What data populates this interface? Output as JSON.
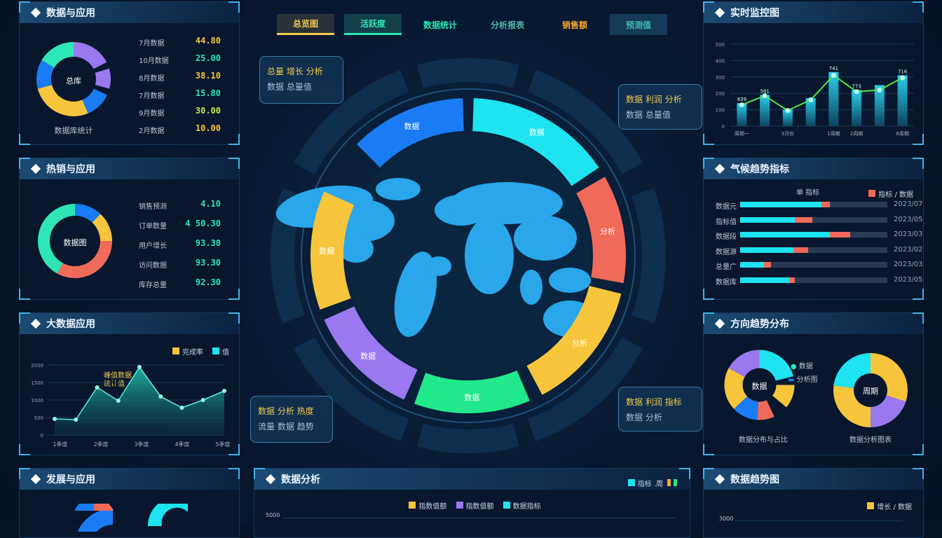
{
  "colors": {
    "cyan": "#1ee3f0",
    "blue": "#1a7cf5",
    "yellow": "#f7c53c",
    "red": "#f06a5a",
    "purple": "#9a78f0",
    "green": "#21e88a",
    "teal": "#2ee6b5",
    "line": "#4ee84a"
  },
  "tabs": [
    {
      "label": "总览图",
      "color": "#f2c94c",
      "active": "yellow"
    },
    {
      "label": "活跃度",
      "color": "#2ee6b5",
      "active": "teal"
    },
    {
      "label": "数据统计",
      "color": "#2ee6b5",
      "active": ""
    },
    {
      "label": "分析报表",
      "color": "#4fb8a8",
      "active": ""
    },
    {
      "label": "销售额",
      "color": "#f7a531",
      "active": ""
    },
    {
      "label": "预测值",
      "color": "#3fb8b0",
      "active": "box"
    }
  ],
  "left": {
    "p1": {
      "title": "数据与应用",
      "center": "总库",
      "caption": "数据库统计",
      "donut": [
        {
          "v": 18,
          "c": "purple"
        },
        {
          "v": 3,
          "c": "gap"
        },
        {
          "v": 9,
          "c": "purple"
        },
        {
          "v": 3,
          "c": "gap"
        },
        {
          "v": 12,
          "c": "blue"
        },
        {
          "v": 28,
          "c": "yellow"
        },
        {
          "v": 13,
          "c": "blue"
        },
        {
          "v": 17,
          "c": "teal"
        }
      ],
      "rows": [
        {
          "label": "7月数据",
          "value": "44.80",
          "color": "#f7c53c"
        },
        {
          "label": "10月数据",
          "value": "25.00",
          "color": "#2ee6b5"
        },
        {
          "label": "8月数据",
          "value": "38.10",
          "color": "#f7c53c"
        },
        {
          "label": "7月数据",
          "value": "15.80",
          "color": "#2ee6b5"
        },
        {
          "label": "9月数据",
          "value": "30.00",
          "color": "#c6e84a"
        },
        {
          "label": "2月数据",
          "value": "10.00",
          "color": "#f7c53c"
        }
      ]
    },
    "p2": {
      "title": "热销与应用",
      "center": "数据图",
      "donut": [
        {
          "v": 12,
          "c": "blue"
        },
        {
          "v": 13,
          "c": "yellow"
        },
        {
          "v": 33,
          "c": "red"
        },
        {
          "v": 42,
          "c": "teal"
        }
      ],
      "rows": [
        {
          "label": "销售预测",
          "value": "4.10"
        },
        {
          "label": "订单数量",
          "value": "4 50.30"
        },
        {
          "label": "用户增长",
          "value": "93.30"
        },
        {
          "label": "访问数据",
          "value": "93.30"
        },
        {
          "label": "库存总量",
          "value": "92.30"
        }
      ]
    },
    "p3": {
      "title": "大数据应用",
      "legend": [
        "完成率",
        "值"
      ],
      "annotation": [
        "峰值数据",
        "统计值"
      ],
      "chart_data": {
        "type": "area",
        "y_ticks": [
          0,
          500,
          1000,
          1500,
          2000
        ],
        "x_ticks": [
          "1季度",
          "2季度",
          "3季度",
          "4季度",
          "5季度"
        ],
        "values": [
          460,
          440,
          1360,
          980,
          1940,
          1100,
          780,
          1000,
          1260
        ]
      }
    },
    "p4": {
      "title": "发展与应用"
    }
  },
  "right": {
    "p1": {
      "title": "实时监控图",
      "chart_data": {
        "type": "bar+line",
        "y_ticks": [
          0,
          100,
          200,
          300,
          400,
          500
        ],
        "categories": [
          "周期一",
          "",
          "3月份",
          "",
          "1周期",
          "2周期",
          "",
          "8周期"
        ],
        "bars": [
          140,
          190,
          100,
          170,
          330,
          220,
          250,
          310
        ],
        "line": [
          130,
          185,
          95,
          160,
          310,
          210,
          220,
          295
        ],
        "bar_labels": [
          "839",
          "581",
          "",
          "",
          "741",
          "773",
          "",
          "716"
        ]
      }
    },
    "p2": {
      "title": "气候趋势指标",
      "legend": [
        "单 指标",
        "指标 / 数据"
      ],
      "rows": [
        {
          "label": "数据元",
          "a": 55,
          "b": 6,
          "value": "2023/07"
        },
        {
          "label": "指标值",
          "a": 37,
          "b": 12,
          "value": "2023/05"
        },
        {
          "label": "数据段",
          "a": 61,
          "b": 14,
          "value": "2023/03"
        },
        {
          "label": "数据源",
          "a": 36,
          "b": 10,
          "value": "2023/02"
        },
        {
          "label": "总量广",
          "a": 16,
          "b": 5,
          "value": "2023/03"
        },
        {
          "label": "数据库",
          "a": 34,
          "b": 3,
          "value": "2023/05"
        }
      ]
    },
    "p3": {
      "title": "方向趋势分布",
      "d1": {
        "center": "数据",
        "caption": "数据分布与占比",
        "legend": [
          "数据",
          "分析图"
        ],
        "segs": [
          {
            "v": 21,
            "c": "cyan"
          },
          {
            "v": 4,
            "c": "gap"
          },
          {
            "v": 11,
            "c": "yellow"
          },
          {
            "v": 7,
            "c": "gap"
          },
          {
            "v": 8,
            "c": "red"
          },
          {
            "v": 12,
            "c": "blue"
          },
          {
            "v": 20,
            "c": "yellow"
          },
          {
            "v": 17,
            "c": "purple"
          }
        ]
      },
      "d2": {
        "center": "周期",
        "caption": "数据分析图表",
        "segs": [
          {
            "v": 30,
            "c": "yellow"
          },
          {
            "v": 20,
            "c": "purple"
          },
          {
            "v": 27,
            "c": "yellow"
          },
          {
            "v": 23,
            "c": "cyan"
          }
        ]
      }
    },
    "p4": {
      "title": "数据趋势图",
      "legend": "增长 / 数据",
      "tick": "3000"
    }
  },
  "center": {
    "ring": [
      {
        "label": "数据",
        "c": "blue",
        "a0": -45,
        "a1": -2
      },
      {
        "label": "数据",
        "c": "cyan",
        "a0": 2,
        "a1": 56
      },
      {
        "label": "分析",
        "c": "red",
        "a0": 60,
        "a1": 100
      },
      {
        "label": "分析",
        "c": "yellow",
        "a0": 104,
        "a1": 152
      },
      {
        "label": "数据",
        "c": "green",
        "a0": 157,
        "a1": 200
      },
      {
        "label": "数据",
        "c": "purple",
        "a0": 204,
        "a1": 246
      },
      {
        "label": "数据",
        "c": "yellow",
        "a0": 250,
        "a1": 294
      }
    ],
    "callouts": [
      {
        "a": "总量 增长 分析",
        "b": "数据 总量值"
      },
      {
        "a": "数据 利润 分析",
        "b": "数据 总量值"
      },
      {
        "a": "数据 分析 热度",
        "b": "流量 数据 趋势"
      },
      {
        "a": "数据 利润 指标",
        "b": "数据 分析"
      }
    ]
  },
  "bottom": {
    "title": "数据分析",
    "top_legend": "指标 .周",
    "legend": [
      "指数值额",
      "指数值额",
      "数据指标"
    ],
    "tick": "5000"
  }
}
